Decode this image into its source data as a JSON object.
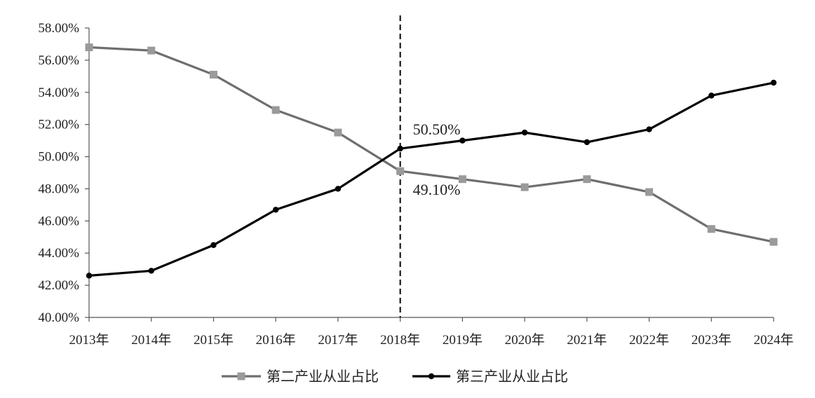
{
  "chart_data": {
    "type": "line",
    "categories": [
      "2013年",
      "2014年",
      "2015年",
      "2016年",
      "2017年",
      "2018年",
      "2019年",
      "2020年",
      "2021年",
      "2022年",
      "2023年",
      "2024年"
    ],
    "ylim": [
      40,
      58
    ],
    "yticks": [
      40,
      42,
      44,
      46,
      48,
      50,
      52,
      54,
      56,
      58
    ],
    "ytick_labels": [
      "40.00%",
      "42.00%",
      "44.00%",
      "46.00%",
      "48.00%",
      "50.00%",
      "52.00%",
      "54.00%",
      "56.00%",
      "58.00%"
    ],
    "grid": false,
    "legend_position": "bottom",
    "divider_category": "2018年",
    "series": [
      {
        "name": "第二产业从业占比",
        "color": "#6e6e6e",
        "marker": "square",
        "values": [
          56.8,
          56.6,
          55.1,
          52.9,
          51.5,
          49.1,
          48.6,
          48.1,
          48.6,
          47.8,
          45.5,
          44.7
        ]
      },
      {
        "name": "第三产业从业占比",
        "color": "#000000",
        "marker": "circle",
        "values": [
          42.6,
          42.9,
          44.5,
          46.7,
          48.0,
          50.5,
          51.0,
          51.5,
          50.9,
          51.7,
          53.8,
          54.6
        ]
      }
    ],
    "annotations": [
      {
        "text": "50.50%",
        "series": 1,
        "category": "2018年"
      },
      {
        "text": "49.10%",
        "series": 0,
        "category": "2018年"
      }
    ]
  }
}
